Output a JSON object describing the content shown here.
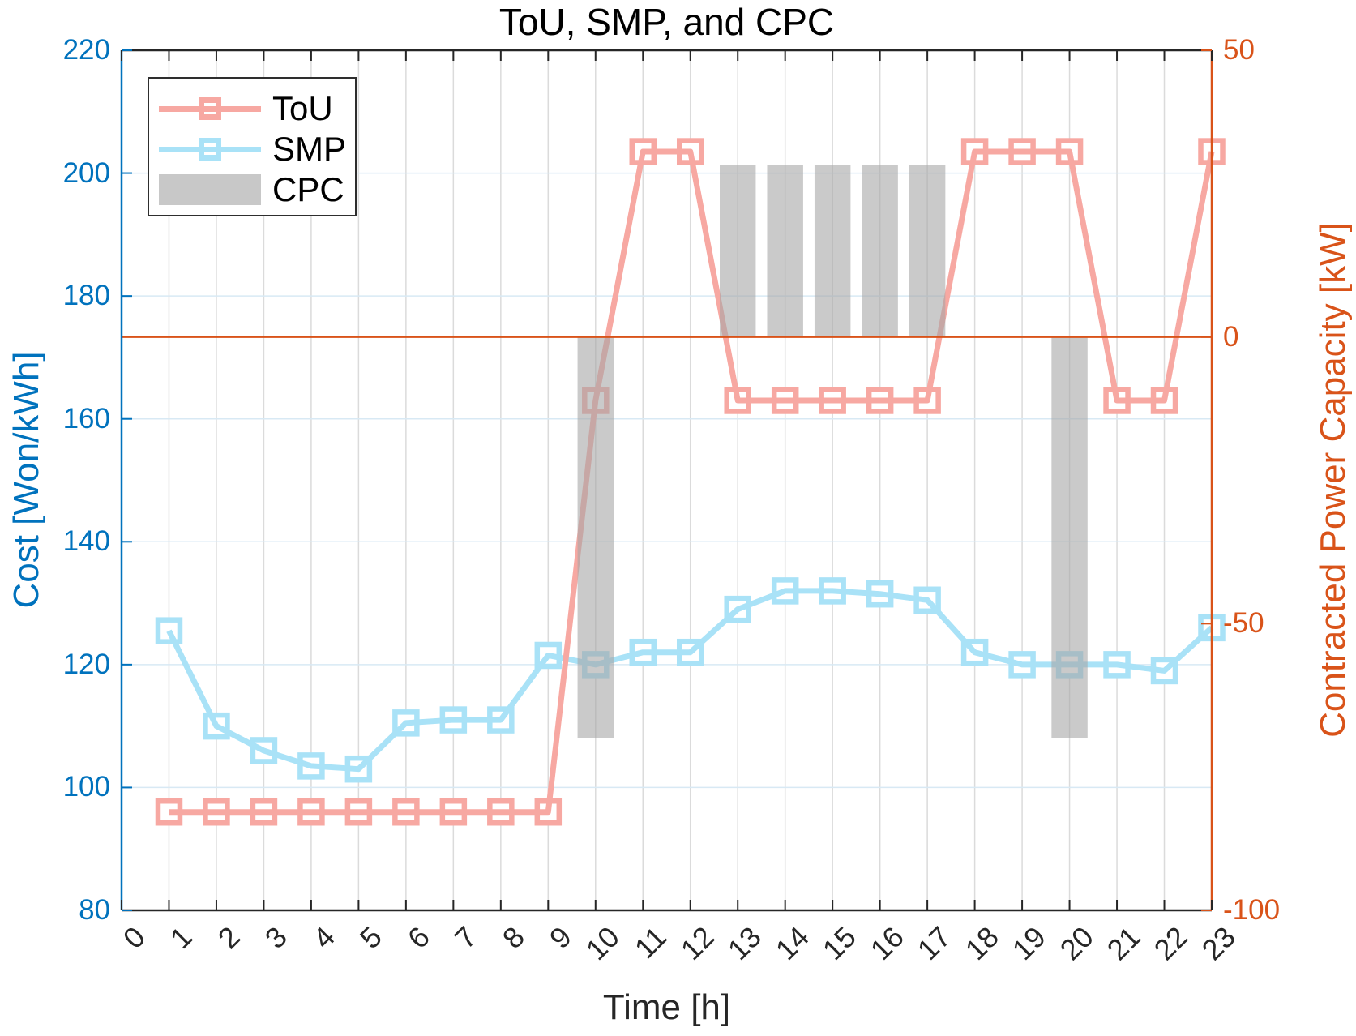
{
  "title": "ToU, SMP, and CPC",
  "x_axis": {
    "label": "Time [h]",
    "min": 0,
    "max": 23,
    "ticks": [
      0,
      1,
      2,
      3,
      4,
      5,
      6,
      7,
      8,
      9,
      10,
      11,
      12,
      13,
      14,
      15,
      16,
      17,
      18,
      19,
      20,
      21,
      22,
      23
    ]
  },
  "y_left": {
    "label": "Cost [Won/kWh]",
    "color": "#0072BD",
    "min": 80,
    "max": 220,
    "ticks": [
      220,
      200,
      180,
      160,
      140,
      120,
      100,
      80
    ],
    "grid_ticks": [
      100,
      120,
      140,
      160,
      180,
      200
    ]
  },
  "y_right": {
    "label": "Contracted Power Capacity [kW]",
    "color": "#D95319",
    "min": -100,
    "max": 50,
    "ticks": [
      50,
      0,
      -50,
      -100
    ]
  },
  "legend": {
    "items": [
      {
        "label": "ToU",
        "swatch": "line",
        "color": "#F7A8A2"
      },
      {
        "label": "SMP",
        "swatch": "line",
        "color": "#A9E2F7"
      },
      {
        "label": "CPC",
        "swatch": "bar",
        "color": "#C8C8C8"
      }
    ]
  },
  "chart_data": {
    "type": "line+bar",
    "title": "ToU, SMP, and CPC",
    "xlabel": "Time [h]",
    "ylabel_left": "Cost [Won/kWh]",
    "ylabel_right": "Contracted Power Capacity [kW]",
    "x_range": [
      0,
      23
    ],
    "ylim_left": [
      80,
      220
    ],
    "ylim_right": [
      -100,
      50
    ],
    "grid": true,
    "legend_position": "top-left",
    "x_hours": [
      1,
      2,
      3,
      4,
      5,
      6,
      7,
      8,
      9,
      10,
      11,
      12,
      13,
      14,
      15,
      16,
      17,
      18,
      19,
      20,
      21,
      22,
      23
    ],
    "series": [
      {
        "name": "SMP",
        "type": "line",
        "axis": "left",
        "marker": "square",
        "color": "#A9E2F7",
        "values": [
          125.5,
          110,
          106,
          103.5,
          103,
          110.5,
          111,
          111,
          121.5,
          120,
          122,
          122,
          129,
          132,
          132,
          131.5,
          130.5,
          122,
          120,
          120,
          120,
          119,
          126
        ]
      },
      {
        "name": "ToU",
        "type": "line",
        "axis": "left",
        "marker": "square",
        "color": "#F7A8A2",
        "values": [
          96,
          96,
          96,
          96,
          96,
          96,
          96,
          96,
          96,
          163,
          203.5,
          203.5,
          163,
          163,
          163,
          163,
          163,
          203.5,
          203.5,
          203.5,
          163,
          163,
          203.5
        ]
      },
      {
        "name": "CPC",
        "type": "bar",
        "axis": "right",
        "color": "rgba(166,166,166,0.6)",
        "x": [
          10,
          13,
          14,
          15,
          16,
          17,
          20
        ],
        "values": [
          -70,
          30,
          30,
          30,
          30,
          30,
          -70
        ],
        "bar_width_hours": 0.76
      }
    ],
    "zero_line": {
      "axis": "right",
      "value": 0,
      "color": "#D95319"
    }
  },
  "style": {
    "grid_v_color": "#DBDBDB",
    "grid_h_color": "#D8E9F4",
    "axis_dark": "#262626",
    "axis_left": "#0072BD",
    "axis_right": "#D95319"
  }
}
